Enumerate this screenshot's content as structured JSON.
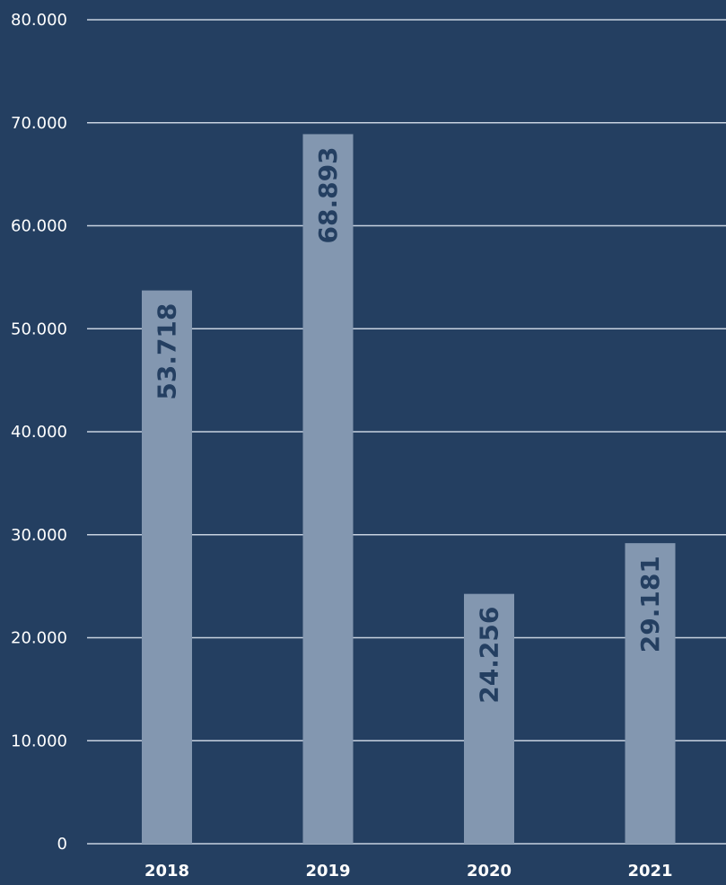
{
  "chart_data": {
    "type": "bar",
    "categories": [
      "2018",
      "2019",
      "2020",
      "2021"
    ],
    "values": [
      53718,
      68893,
      24256,
      29181
    ],
    "value_labels": [
      "53.718",
      "68.893",
      "24.256",
      "29.181"
    ],
    "y_ticks": [
      0,
      10000,
      20000,
      30000,
      40000,
      50000,
      60000,
      70000,
      80000
    ],
    "y_tick_labels": [
      "0",
      "10.000",
      "20.000",
      "30.000",
      "40.000",
      "50.000",
      "60.000",
      "70.000",
      "80.000"
    ],
    "ylim": [
      0,
      80000
    ],
    "grid": true,
    "title": "",
    "xlabel": "",
    "ylabel": "",
    "colors": {
      "background": "#243f61",
      "bar": "#8397b0",
      "grid": "#c7d2e0",
      "value_label": "#243f61",
      "axis_text": "#ffffff"
    }
  }
}
